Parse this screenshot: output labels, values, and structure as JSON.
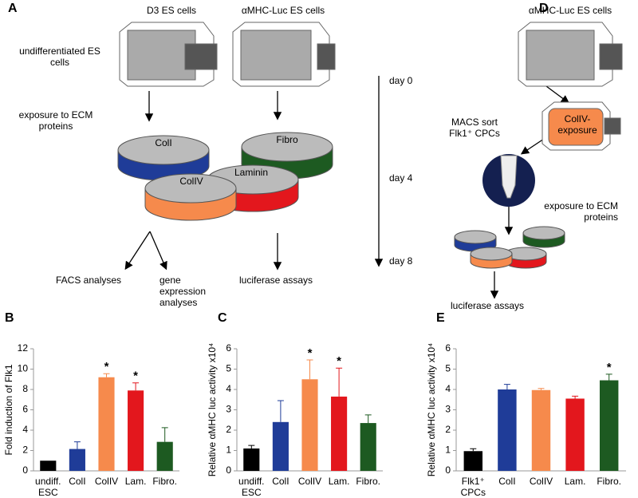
{
  "diagram": {
    "panel_a": "A",
    "panel_d": "D",
    "d3_cells": "D3 ES cells",
    "mhc_cells": "αMHC-Luc ES cells",
    "undiff": "undifferentiated ES cells",
    "exposure": "exposure to ECM proteins",
    "dishes": [
      "ColI",
      "ColIV",
      "Laminin",
      "Fibro"
    ],
    "days": [
      "day 0",
      "day 4",
      "day 8"
    ],
    "facs": "FACS analyses",
    "gene": "gene expression analyses",
    "luc_a": "luciferase assays",
    "d_cells": "αMHC-Luc ES cells",
    "d_coliv": "ColIV-exposure",
    "d_macs": "MACS sort Flk1⁺ CPCs",
    "d_exposure": "exposure to ECM proteins",
    "d_luc": "luciferase assays"
  },
  "chart_data": [
    {
      "type": "bar",
      "panel": "B",
      "y_label": "Fold induction of Flk1",
      "categories": [
        "undiff. ESC",
        "ColI",
        "ColIV",
        "Lam.",
        "Fibro."
      ],
      "values": [
        1.0,
        2.15,
        9.2,
        7.9,
        2.85
      ],
      "errors": [
        null,
        0.7,
        0.35,
        0.75,
        1.4
      ],
      "value_annotations": [
        null,
        null,
        "*",
        "*",
        null
      ],
      "colors": [
        "#000000",
        "#1f3c98",
        "#f68a4c",
        "#e3171d",
        "#1d5a21"
      ],
      "ylim": [
        0,
        12
      ],
      "yticks": [
        0,
        2,
        4,
        6,
        8,
        10,
        12
      ]
    },
    {
      "type": "bar",
      "panel": "C",
      "y_label": "Relative αMHC luc activity x10⁴",
      "categories": [
        "undiff. ESC",
        "ColI",
        "ColIV",
        "Lam.",
        "Fibro."
      ],
      "values": [
        1.1,
        2.4,
        4.5,
        3.65,
        2.35
      ],
      "errors": [
        0.15,
        1.05,
        0.95,
        1.4,
        0.4
      ],
      "value_annotations": [
        null,
        null,
        "*",
        "*",
        null
      ],
      "colors": [
        "#000000",
        "#1f3c98",
        "#f68a4c",
        "#e3171d",
        "#1d5a21"
      ],
      "ylim": [
        0,
        6
      ],
      "yticks": [
        0,
        1,
        2,
        3,
        4,
        5,
        6
      ]
    },
    {
      "type": "bar",
      "panel": "E",
      "y_label": "Relative αMHC luc activity x10⁴",
      "categories": [
        "Flk1⁺ CPCs",
        "ColI",
        "ColIV",
        "Lam.",
        "Fibro."
      ],
      "values": [
        0.97,
        4.0,
        3.97,
        3.55,
        4.45
      ],
      "errors": [
        0.12,
        0.25,
        0.08,
        0.12,
        0.3
      ],
      "value_annotations": [
        null,
        null,
        null,
        null,
        "*"
      ],
      "colors": [
        "#000000",
        "#1f3c98",
        "#f68a4c",
        "#e3171d",
        "#1d5a21"
      ],
      "ylim": [
        0,
        6
      ],
      "yticks": [
        0,
        1,
        2,
        3,
        4,
        5,
        6
      ]
    }
  ]
}
